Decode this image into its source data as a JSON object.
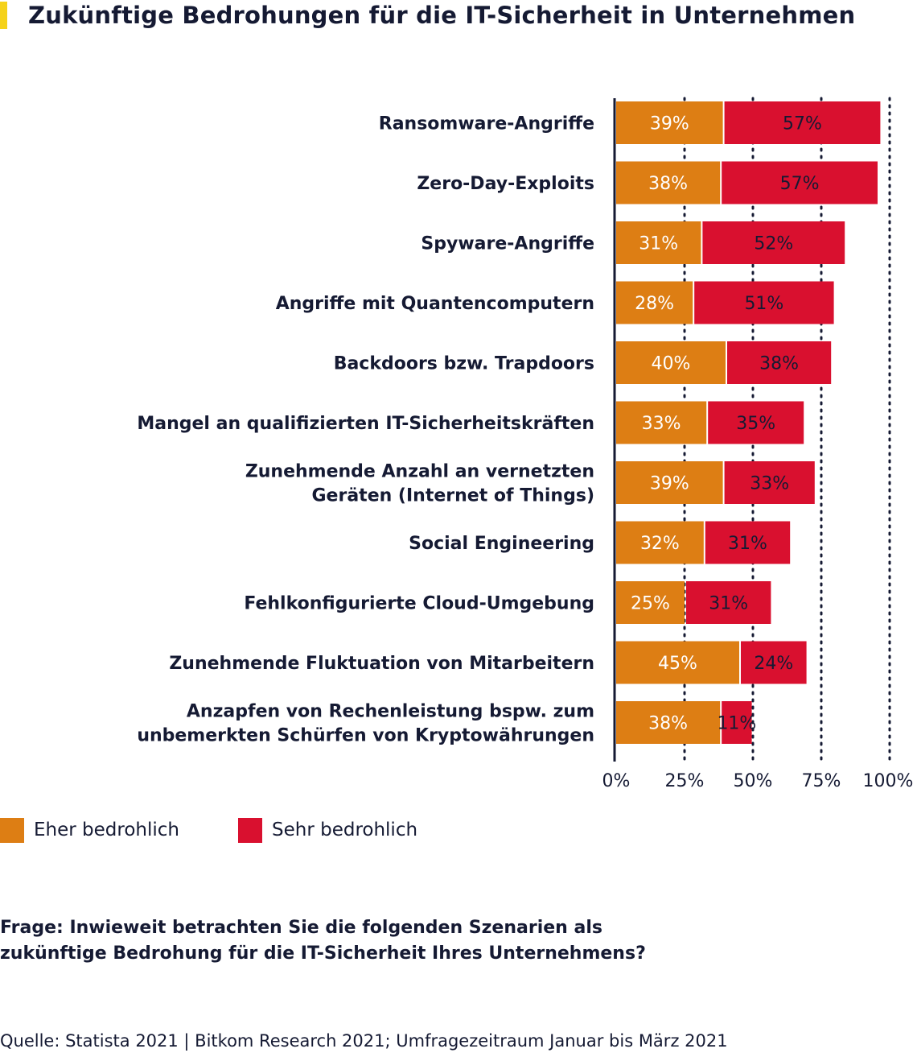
{
  "title": "Zukünftige Bedrohungen für die IT-Sicherheit in Unternehmen",
  "question": [
    "Frage: Inwieweit betrachten Sie die folgenden Szenarien als",
    "zukünftige Bedrohung für die IT-Sicherheit Ihres Unternehmens?"
  ],
  "source": "Quelle: Statista 2021 | Bitkom Research 2021; Umfragezeitraum Januar bis März 2021",
  "colors": {
    "accent": "#f5d21a",
    "eher": "#dd7e14",
    "sehr": "#d9102f",
    "text": "#151a33"
  },
  "legend": [
    {
      "label": "Eher bedrohlich",
      "color": "#dd7e14"
    },
    {
      "label": "Sehr bedrohlich",
      "color": "#d9102f"
    }
  ],
  "chart_data": {
    "type": "bar",
    "orientation": "horizontal",
    "stacked": true,
    "categories": [
      [
        "Ransomware-Angriffe"
      ],
      [
        "Zero-Day-Exploits"
      ],
      [
        "Spyware-Angriffe"
      ],
      [
        "Angriffe mit Quantencomputern"
      ],
      [
        "Backdoors bzw. Trapdoors"
      ],
      [
        "Mangel an qualifizierten IT-Sicherheitskräften"
      ],
      [
        "Zunehmende Anzahl an vernetzten",
        "Geräten (Internet of Things)"
      ],
      [
        "Social Engineering"
      ],
      [
        "Fehlkonfigurierte Cloud-Umgebung"
      ],
      [
        "Zunehmende Fluktuation von Mitarbeitern"
      ],
      [
        "Anzapfen von Rechenleistung bspw. zum",
        "unbemerkten Schürfen von Kryptowährungen"
      ]
    ],
    "series": [
      {
        "name": "Eher bedrohlich",
        "values": [
          39,
          38,
          31,
          28,
          40,
          33,
          39,
          32,
          25,
          45,
          38
        ]
      },
      {
        "name": "Sehr bedrohlich",
        "values": [
          57,
          57,
          52,
          51,
          38,
          35,
          33,
          31,
          31,
          24,
          11
        ]
      }
    ],
    "x_ticks": [
      "0%",
      "25%",
      "50%",
      "75%",
      "100%"
    ],
    "xlim": [
      0,
      100
    ],
    "unit": "%",
    "grid": true,
    "legend_position": "bottom-left"
  }
}
